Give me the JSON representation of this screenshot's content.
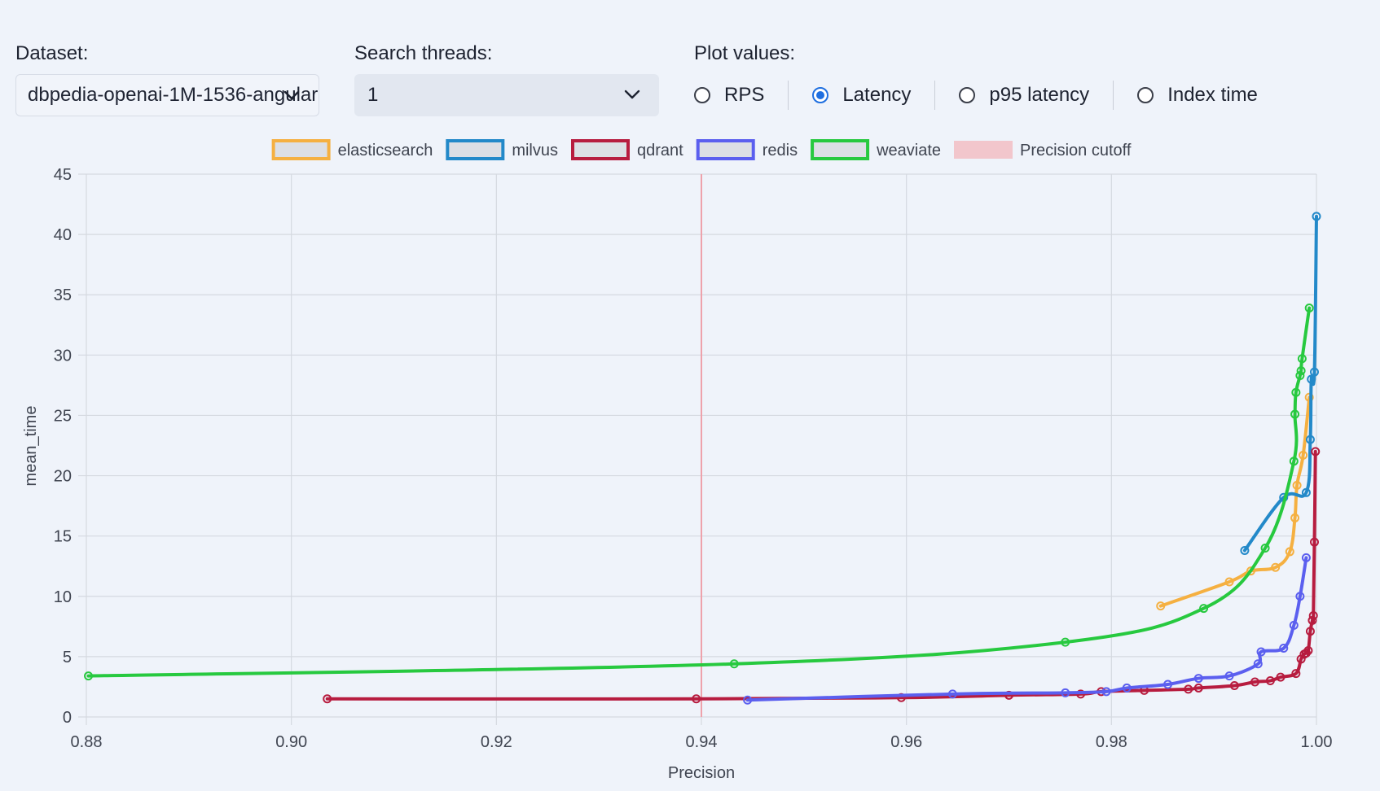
{
  "controls": {
    "dataset_label": "Dataset:",
    "dataset_value": "dbpedia-openai-1M-1536-angular",
    "threads_label": "Search threads:",
    "threads_value": "1",
    "plot_label": "Plot values:",
    "options": [
      "RPS",
      "Latency",
      "p95 latency",
      "Index time"
    ],
    "selected": "Latency"
  },
  "chart_data": {
    "type": "line",
    "xlabel": "Precision",
    "ylabel": "mean_time",
    "xlim": [
      0.88,
      1.0
    ],
    "ylim": [
      0,
      45
    ],
    "xticks": [
      "0.88",
      "0.90",
      "0.92",
      "0.94",
      "0.96",
      "0.98",
      "1.00"
    ],
    "yticks": [
      "0",
      "5",
      "10",
      "15",
      "20",
      "25",
      "30",
      "35",
      "40",
      "45"
    ],
    "grid": true,
    "legend_position": "top",
    "precision_cutoff": 0.94,
    "cutoff_label": "Precision cutoff",
    "cutoff_color": "#f2c6cc",
    "series": [
      {
        "name": "elasticsearch",
        "color": "#f5b041",
        "points": [
          [
            0.9848,
            9.2
          ],
          [
            0.9915,
            11.2
          ],
          [
            0.9936,
            12.1
          ],
          [
            0.996,
            12.4
          ],
          [
            0.9974,
            13.7
          ],
          [
            0.9979,
            16.5
          ],
          [
            0.9981,
            19.2
          ],
          [
            0.9987,
            21.7
          ],
          [
            0.9993,
            26.5
          ]
        ]
      },
      {
        "name": "milvus",
        "color": "#2389c9",
        "points": [
          [
            0.993,
            13.8
          ],
          [
            0.9968,
            18.2
          ],
          [
            0.999,
            18.6
          ],
          [
            0.9994,
            23.0
          ],
          [
            0.9995,
            28.0
          ],
          [
            0.9998,
            28.6
          ],
          [
            1.0,
            41.5
          ]
        ]
      },
      {
        "name": "qdrant",
        "color": "#b71c3f",
        "points": [
          [
            0.9035,
            1.5
          ],
          [
            0.9395,
            1.5
          ],
          [
            0.9595,
            1.6
          ],
          [
            0.97,
            1.8
          ],
          [
            0.977,
            1.9
          ],
          [
            0.979,
            2.1
          ],
          [
            0.9832,
            2.2
          ],
          [
            0.9875,
            2.3
          ],
          [
            0.9885,
            2.4
          ],
          [
            0.992,
            2.6
          ],
          [
            0.994,
            2.9
          ],
          [
            0.9955,
            3.0
          ],
          [
            0.9965,
            3.3
          ],
          [
            0.998,
            3.6
          ],
          [
            0.9985,
            4.8
          ],
          [
            0.9988,
            5.2
          ],
          [
            0.999,
            5.3
          ],
          [
            0.9992,
            5.5
          ],
          [
            0.9994,
            7.1
          ],
          [
            0.9996,
            8.0
          ],
          [
            0.9997,
            8.4
          ],
          [
            0.9998,
            14.5
          ],
          [
            0.9999,
            22.0
          ]
        ]
      },
      {
        "name": "redis",
        "color": "#5b5fef",
        "points": [
          [
            0.9445,
            1.4
          ],
          [
            0.9645,
            1.9
          ],
          [
            0.9755,
            2.0
          ],
          [
            0.9795,
            2.1
          ],
          [
            0.9815,
            2.4
          ],
          [
            0.9855,
            2.7
          ],
          [
            0.9885,
            3.2
          ],
          [
            0.9915,
            3.4
          ],
          [
            0.9943,
            4.4
          ],
          [
            0.9946,
            5.4
          ],
          [
            0.9968,
            5.7
          ],
          [
            0.9978,
            7.6
          ],
          [
            0.9984,
            10.0
          ],
          [
            0.999,
            13.2
          ]
        ]
      },
      {
        "name": "weaviate",
        "color": "#27c93f",
        "points": [
          [
            0.8802,
            3.4
          ],
          [
            0.9432,
            4.4
          ],
          [
            0.9755,
            6.2
          ],
          [
            0.989,
            9.0
          ],
          [
            0.995,
            14.0
          ],
          [
            0.9978,
            21.2
          ],
          [
            0.9979,
            25.1
          ],
          [
            0.998,
            26.9
          ],
          [
            0.9984,
            28.3
          ],
          [
            0.9985,
            28.7
          ],
          [
            0.9986,
            29.7
          ],
          [
            0.9993,
            33.9
          ]
        ]
      }
    ]
  }
}
